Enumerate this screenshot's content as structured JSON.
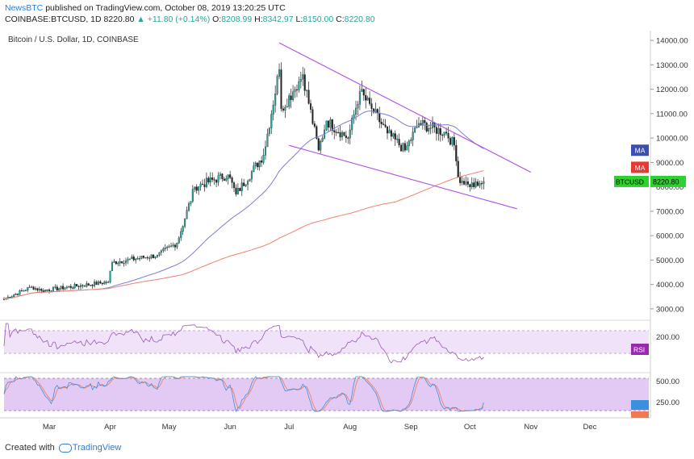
{
  "header": {
    "brand": "NewsBTC",
    "published": "published on TradingView.com, October 08, 2019 13:20:25 UTC",
    "symbol": "COINBASE:BTCUSD, 1D",
    "price": "8220.80",
    "change_arrow": "▲",
    "change": "+11.80 (+0.14%)",
    "ohlc": {
      "o_label": "O:",
      "o": "8208.99",
      "h_label": "H:",
      "h": "8342.97",
      "l_label": "L:",
      "l": "8150.00",
      "c_label": "C:",
      "c": "8220.80"
    }
  },
  "footer": {
    "created": "Created with",
    "logo_text": "TradingView"
  },
  "colors": {
    "up": "#26a69a",
    "down": "#222222",
    "ma_blue": "#7b7fd8",
    "ma_red": "#f08070",
    "wedge": "#b04ee8",
    "rsi": "#9b59b6",
    "stoch_k": "#3b8fe0",
    "stoch_d": "#f07a50",
    "band": "#e9d5f5",
    "stoch_band": "#d9b8f0",
    "price_tag": "#2fd12f",
    "ma_tag_blue": "#3b4fb0",
    "ma_tag_red": "#e53935",
    "rsi_tag": "#9c27b0"
  },
  "chart_data": [
    {
      "type": "candlestick",
      "title": "Bitcoin / U.S. Dollar, 1D, COINBASE",
      "x_labels": [
        "Mar",
        "Apr",
        "May",
        "Jun",
        "Jul",
        "Aug",
        "Sep",
        "Oct",
        "Nov",
        "Dec"
      ],
      "y_ticks": [
        "14000.00",
        "13000.00",
        "12000.00",
        "11000.00",
        "10000.00",
        "9000.00",
        "8000.00",
        "7000.00",
        "6000.00",
        "5000.00",
        "4000.00",
        "3000.00"
      ],
      "ylim": [
        2600,
        14400
      ],
      "anchors": [
        [
          "2019-02-06",
          3400
        ],
        [
          "2019-02-20",
          3900
        ],
        [
          "2019-02-25",
          3750
        ],
        [
          "2019-03-31",
          4100
        ],
        [
          "2019-04-02",
          4900
        ],
        [
          "2019-04-25",
          5200
        ],
        [
          "2019-05-05",
          5700
        ],
        [
          "2019-05-14",
          8000
        ],
        [
          "2019-05-31",
          8500
        ],
        [
          "2019-06-04",
          7700
        ],
        [
          "2019-06-18",
          9300
        ],
        [
          "2019-06-26",
          12800
        ],
        [
          "2019-06-27",
          11200
        ],
        [
          "2019-07-03",
          11900
        ],
        [
          "2019-07-08",
          12600
        ],
        [
          "2019-07-16",
          9500
        ],
        [
          "2019-07-20",
          10700
        ],
        [
          "2019-07-31",
          10000
        ],
        [
          "2019-08-06",
          11900
        ],
        [
          "2019-08-12",
          11200
        ],
        [
          "2019-08-20",
          10200
        ],
        [
          "2019-08-29",
          9500
        ],
        [
          "2019-09-05",
          10600
        ],
        [
          "2019-09-19",
          10200
        ],
        [
          "2019-09-23",
          9700
        ],
        [
          "2019-09-25",
          8400
        ],
        [
          "2019-09-30",
          8100
        ],
        [
          "2019-10-05",
          8050
        ],
        [
          "2019-10-08",
          8220
        ]
      ],
      "ma_labels": [
        "MA",
        "MA"
      ],
      "last_price_label": "BTCUSD",
      "last_price": "8220.80",
      "annotations": "falling wedge trendlines"
    },
    {
      "type": "line",
      "name": "RSI",
      "y_tick": "200.00",
      "label": "RSI"
    },
    {
      "type": "line",
      "name": "Stoch",
      "y_ticks": [
        "500.00",
        "250.00"
      ]
    }
  ]
}
